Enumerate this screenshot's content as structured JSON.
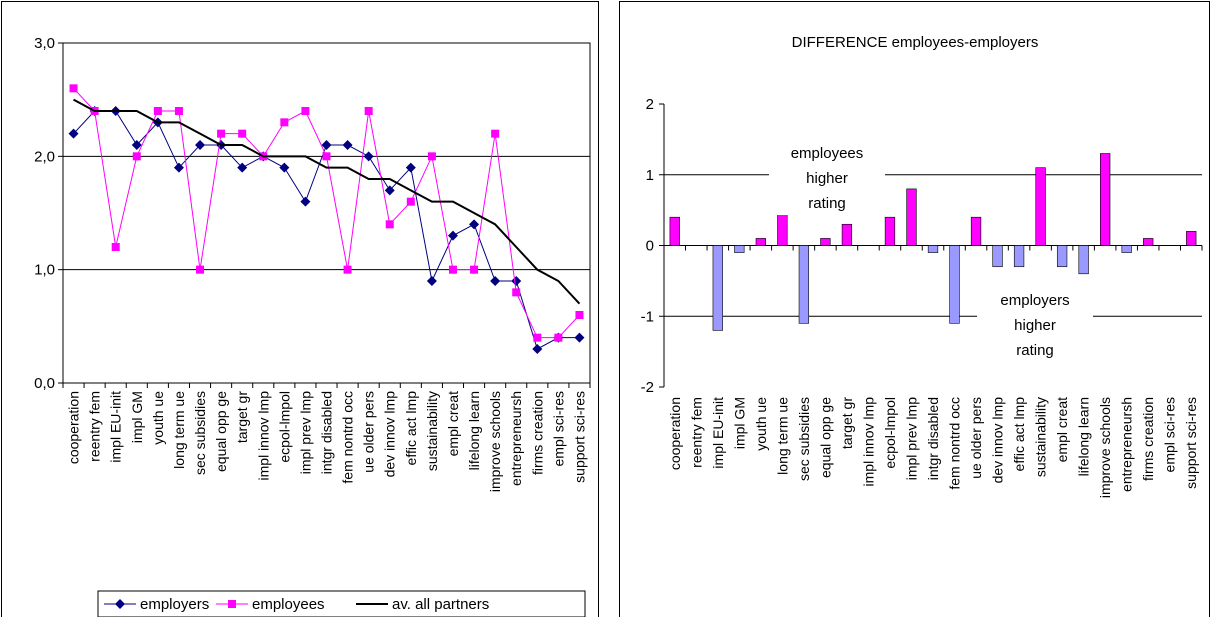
{
  "chart_data": [
    {
      "type": "line",
      "categories": [
        "cooperation",
        "reentry fem",
        "impl EU-init",
        "impl GM",
        "youth ue",
        "long term ue",
        "sec subsidies",
        "equal opp ge",
        "target gr",
        "impl innov lmp",
        "ecpol-lmpol",
        "impl prev lmp",
        "intgr disabled",
        "fem nontrd occ",
        "ue older pers",
        "dev innov lmp",
        "effic act lmp",
        "sustainability",
        "empl creat",
        "lifelong learn",
        "improve schools",
        "entrepreneursh",
        "firms creation",
        "empl sci-res",
        "support sci-res"
      ],
      "series": [
        {
          "name": "employers",
          "color": "#000080",
          "marker": "diamond",
          "values": [
            2.2,
            2.4,
            2.4,
            2.1,
            2.3,
            1.9,
            2.1,
            2.1,
            1.9,
            2.0,
            1.9,
            1.6,
            2.1,
            2.1,
            2.0,
            1.7,
            1.9,
            0.9,
            1.3,
            1.4,
            0.9,
            0.9,
            0.3,
            0.4,
            0.4
          ]
        },
        {
          "name": "employees",
          "color": "#ff00ff",
          "marker": "square",
          "values": [
            2.6,
            2.4,
            1.2,
            2.0,
            2.4,
            2.4,
            1.0,
            2.2,
            2.2,
            2.0,
            2.3,
            2.4,
            2.0,
            1.0,
            2.4,
            1.4,
            1.6,
            2.0,
            1.0,
            1.0,
            2.2,
            0.8,
            0.4,
            0.4,
            0.6
          ]
        },
        {
          "name": "av. all partners",
          "color": "#000000",
          "marker": "none",
          "values": [
            2.5,
            2.4,
            2.4,
            2.4,
            2.3,
            2.3,
            2.2,
            2.1,
            2.1,
            2.0,
            2.0,
            2.0,
            1.9,
            1.9,
            1.8,
            1.8,
            1.7,
            1.6,
            1.6,
            1.5,
            1.4,
            1.2,
            1.0,
            0.9,
            0.7
          ]
        }
      ],
      "ylim": [
        0,
        3
      ],
      "yticks": [
        "0,0",
        "1,0",
        "2,0",
        "3,0"
      ],
      "grid": true,
      "legend": "bottom"
    },
    {
      "type": "bar",
      "title": "DIFFERENCE employees-employers",
      "categories": [
        "cooperation",
        "reentry fem",
        "impl EU-init",
        "impl GM",
        "youth ue",
        "long term ue",
        "sec subsidies",
        "equal opp ge",
        "target gr",
        "impl innov lmp",
        "ecpol-lmpol",
        "impl prev lmp",
        "intgr disabled",
        "fem nontrd occ",
        "ue older pers",
        "dev innov lmp",
        "effic act lmp",
        "sustainability",
        "empl creat",
        "lifelong learn",
        "improve schools",
        "entrepreneursh",
        "firms creation",
        "empl sci-res",
        "support sci-res"
      ],
      "values": [
        0.4,
        0,
        -1.2,
        -0.1,
        0.1,
        0.5,
        -1.1,
        0.1,
        0.3,
        0,
        0.4,
        0.8,
        -0.1,
        -1.1,
        0.4,
        -0.3,
        -0.3,
        1.1,
        -0.3,
        -0.4,
        1.3,
        -0.1,
        0.1,
        0,
        0.2
      ],
      "positive_color": "#ff00ff",
      "negative_color": "#9999ff",
      "ylim": [
        -2,
        2
      ],
      "yticks": [
        "-2",
        "-1",
        "0",
        "1",
        "2"
      ],
      "grid": true,
      "annotations": [
        {
          "lines": [
            "employees",
            "higher",
            "rating"
          ]
        },
        {
          "lines": [
            "employers",
            "higher",
            "rating"
          ]
        }
      ]
    }
  ]
}
